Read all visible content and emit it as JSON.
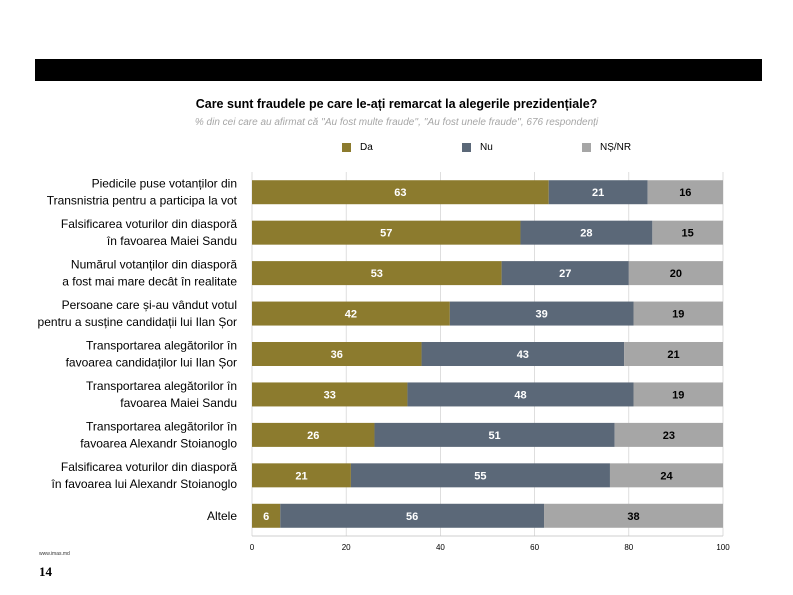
{
  "header": {
    "title": "Care sunt fraudele pe care le-ați remarcat la alegerile prezidențiale?",
    "subtitle": "% din cei care au afirmat că ''Au fost multe fraude'', ''Au fost unele fraude'', 676 respondenți"
  },
  "footer": {
    "url": "www.imas.md",
    "page_number": "14"
  },
  "chart_data": {
    "type": "bar",
    "orientation": "horizontal",
    "stacked": true,
    "categories": [
      [
        "Piedicile puse votanților din",
        "Transnistria pentru a participa la vot"
      ],
      [
        "Falsificarea voturilor din diasporă",
        "în favoarea Maiei Sandu"
      ],
      [
        "Numărul votanților din diasporă",
        "a fost mai mare decât în realitate"
      ],
      [
        "Persoane care și-au vândut votul",
        "pentru a susține candidații lui Ilan Șor"
      ],
      [
        "Transportarea alegătorilor în",
        "favoarea candidaților lui Ilan Șor"
      ],
      [
        "Transportarea alegătorilor în",
        "favoarea Maiei Sandu"
      ],
      [
        "Transportarea alegătorilor în",
        "favoarea Alexandr Stoianoglo"
      ],
      [
        "Falsificarea voturilor din diasporă",
        "în favoarea lui Alexandr Stoianoglo"
      ],
      [
        "Altele"
      ]
    ],
    "series": [
      {
        "name": "Da",
        "color": "#8c7b2e",
        "label_color": "#ffffff",
        "values": [
          63,
          57,
          53,
          42,
          36,
          33,
          26,
          21,
          6
        ]
      },
      {
        "name": "Nu",
        "color": "#5b6878",
        "label_color": "#ffffff",
        "values": [
          21,
          28,
          27,
          39,
          43,
          48,
          51,
          55,
          56
        ]
      },
      {
        "name": "NȘ/NR",
        "color": "#a6a6a6",
        "label_color": "#000000",
        "values": [
          16,
          15,
          20,
          19,
          21,
          19,
          23,
          24,
          38
        ]
      }
    ],
    "xlim": [
      0,
      100
    ],
    "xticks": [
      0,
      20,
      40,
      60,
      80,
      100
    ],
    "xlabel": "",
    "ylabel": "",
    "grid": "vertical",
    "legend_position": "top"
  }
}
